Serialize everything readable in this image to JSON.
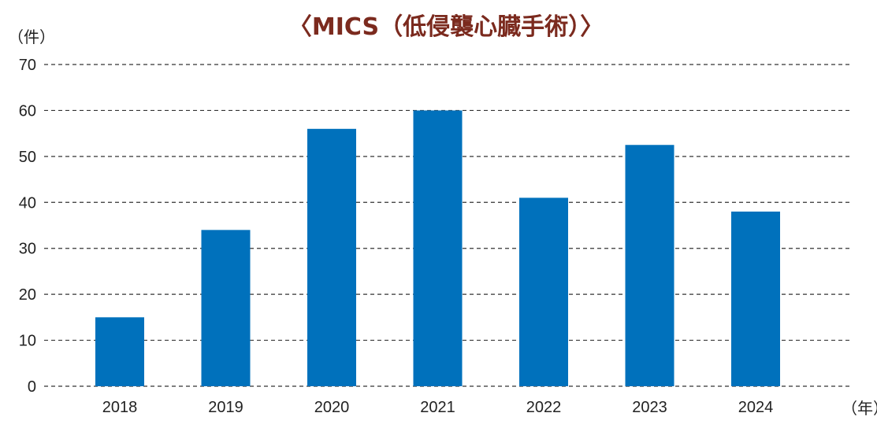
{
  "chart_data": {
    "type": "bar",
    "title": "〈MICS（低侵襲心臓手術）〉",
    "ylabel": "（件）",
    "xlabel": "（年）",
    "categories": [
      "2018",
      "2019",
      "2020",
      "2021",
      "2022",
      "2023",
      "2024"
    ],
    "values": [
      15,
      34,
      56,
      60,
      41,
      52.5,
      38
    ],
    "ylim": [
      0,
      70
    ],
    "yticks": [
      "0",
      "10",
      "20",
      "30",
      "40",
      "50",
      "60",
      "70"
    ],
    "grid": true,
    "bar_color": "#0071bc",
    "title_color": "#7b2a1e"
  }
}
